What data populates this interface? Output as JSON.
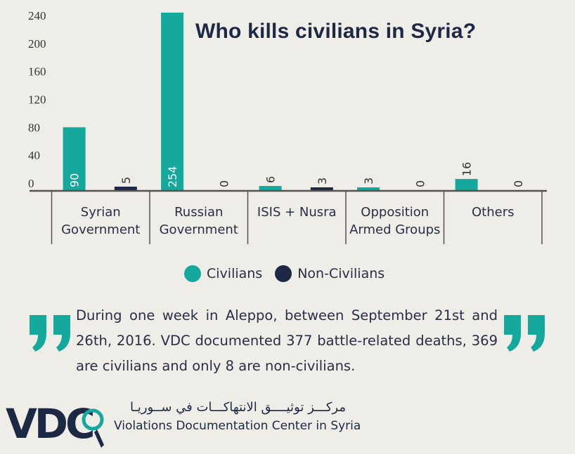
{
  "chart_data": {
    "type": "bar",
    "title": "Who kills civilians in Syria?",
    "categories": [
      "Syrian Government",
      "Russian Government",
      "ISIS + Nusra",
      "Opposition Armed Groups",
      "Others"
    ],
    "series": [
      {
        "name": "Civilians",
        "values": [
          90,
          254,
          6,
          3,
          16
        ],
        "color": "#15a89c"
      },
      {
        "name": "Non-Civilians",
        "values": [
          5,
          0,
          3,
          0,
          0
        ],
        "color": "#1c2844"
      }
    ],
    "y_ticks": [
      0,
      40,
      80,
      120,
      160,
      200,
      240
    ],
    "ylim": [
      0,
      260
    ],
    "grid": false,
    "legend_position": "bottom-center"
  },
  "category_lines": [
    [
      "Syrian",
      "Government"
    ],
    [
      "Russian",
      "Government"
    ],
    [
      "ISIS + Nusra"
    ],
    [
      "Opposition",
      "Armed Groups"
    ],
    [
      "Others"
    ]
  ],
  "legend": {
    "civilians": "Civilians",
    "non_civilians": "Non-Civilians"
  },
  "quote": {
    "text": "During one week in Aleppo, between September 21st and 26th, 2016. VDC documented 377 battle-related deaths, 369 are civilians and only 8 are non-civilians."
  },
  "footer": {
    "logo_text": "VDC",
    "arabic_name": "مركـــز توثيــــق الانتهاكـــات في ســوريـا",
    "english_name": "Violations Documentation Center in Syria"
  },
  "colors": {
    "background": "#efede8",
    "civilians": "#15a89c",
    "non_civilians": "#1c2844",
    "text": "#2a2e45"
  },
  "icons": [
    "open-quote-icon",
    "close-quote-icon",
    "vdc-logo-icon"
  ]
}
